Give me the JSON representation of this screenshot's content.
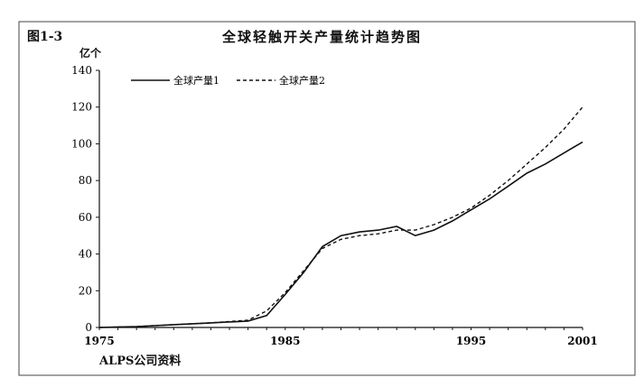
{
  "figure": {
    "label": "图1-3",
    "source": "ALPS公司资料"
  },
  "chart_data": {
    "type": "line",
    "title": "全球轻触开关产量统计趋势图",
    "ylabel": "亿个",
    "xlabel": "",
    "xlim": [
      1975,
      2001
    ],
    "ylim": [
      0,
      140
    ],
    "xticks": [
      1975,
      1985,
      1995,
      2001
    ],
    "yticks": [
      0,
      20,
      40,
      60,
      80,
      100,
      120,
      140
    ],
    "grid": false,
    "legend_position": "top-left",
    "series": [
      {
        "name": "全球产量1",
        "style": "solid",
        "x": [
          1975,
          1977,
          1979,
          1981,
          1983,
          1984,
          1985,
          1986,
          1987,
          1988,
          1989,
          1990,
          1991,
          1992,
          1993,
          1994,
          1995,
          1996,
          1997,
          1998,
          1999,
          2000,
          2001
        ],
        "y": [
          0,
          0.5,
          1.5,
          2.5,
          3.5,
          6.5,
          18,
          30,
          44,
          50,
          52,
          53,
          55,
          50,
          53,
          58,
          64,
          70,
          77,
          84,
          89,
          95,
          101
        ]
      },
      {
        "name": "全球产量2",
        "style": "dashed",
        "x": [
          1975,
          1977,
          1979,
          1981,
          1983,
          1984,
          1985,
          1986,
          1987,
          1988,
          1989,
          1990,
          1991,
          1992,
          1993,
          1994,
          1995,
          1996,
          1997,
          1998,
          1999,
          2000,
          2001
        ],
        "y": [
          0,
          0.5,
          1.5,
          2.5,
          4,
          9,
          19,
          31,
          43,
          48,
          50,
          51,
          53,
          53,
          56,
          60,
          65,
          72,
          80,
          89,
          98,
          108,
          120
        ]
      }
    ]
  }
}
